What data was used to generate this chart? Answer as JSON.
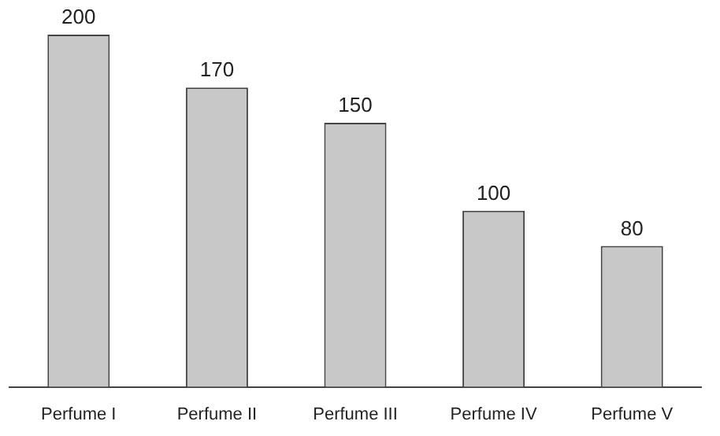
{
  "chart_data": {
    "type": "bar",
    "categories": [
      "Perfume I",
      "Perfume II",
      "Perfume III",
      "Perfume IV",
      "Perfume V"
    ],
    "values": [
      200,
      170,
      150,
      100,
      80
    ],
    "color": "#c8c8c8",
    "data_labels": true
  }
}
